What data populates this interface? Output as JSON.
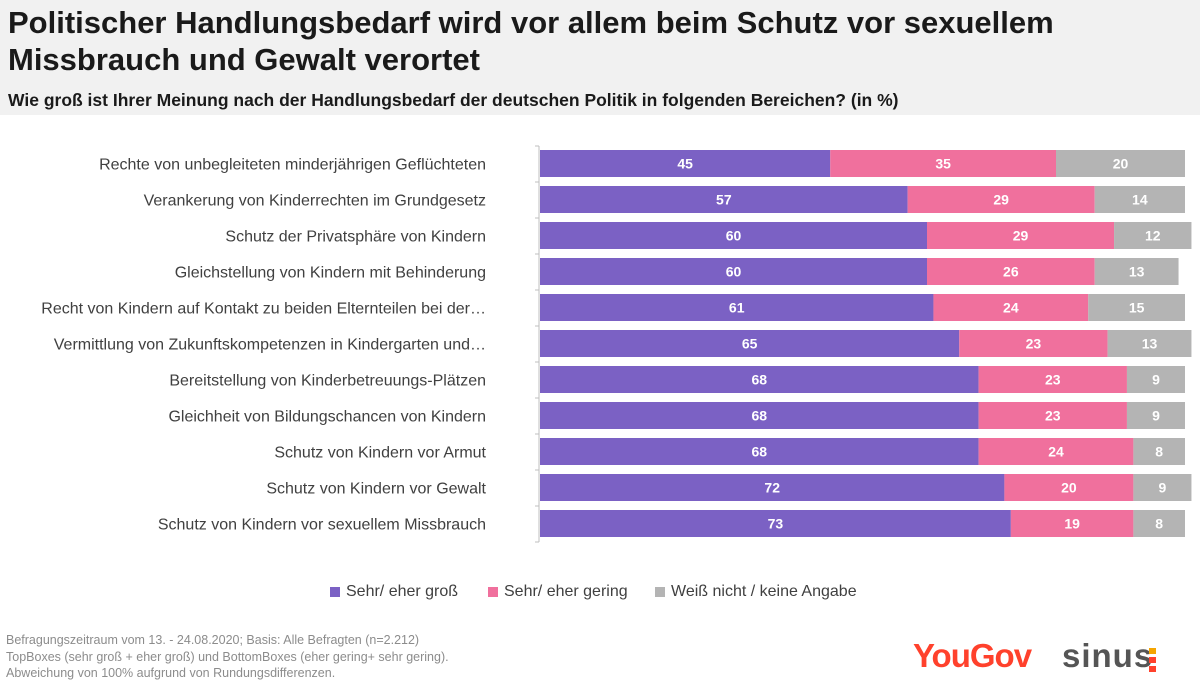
{
  "header": {
    "title": "Politischer Handlungsbedarf wird vor allem beim Schutz vor sexuellem Missbrauch und Gewalt verortet",
    "subtitle": "Wie groß ist Ihrer Meinung nach der Handlungsbedarf der deutschen Politik in folgenden Bereichen? (in %)"
  },
  "chart_data": {
    "type": "bar",
    "orientation": "horizontal",
    "stacked": true,
    "title": "Politischer Handlungsbedarf wird vor allem beim Schutz vor sexuellem Missbrauch und Gewalt verortet",
    "subtitle": "Wie groß ist Ihrer Meinung nach der Handlungsbedarf der deutschen Politik in folgenden Bereichen? (in %)",
    "xlabel": "",
    "ylabel": "",
    "xlim": [
      0,
      100
    ],
    "grid": false,
    "legend_position": "bottom",
    "categories": [
      "Rechte von unbegleiteten minderjährigen Geflüchteten",
      "Verankerung von Kinderrechten im Grundgesetz",
      "Schutz der Privatsphäre von Kindern",
      "Gleichstellung von Kindern mit Behinderung",
      "Recht von Kindern auf Kontakt zu beiden Elternteilen bei der…",
      "Vermittlung von Zukunftskompetenzen in Kindergarten und…",
      "Bereitstellung von Kinderbetreuungs-Plätzen",
      "Gleichheit von Bildungschancen von Kindern",
      "Schutz von Kindern vor Armut",
      "Schutz von Kindern vor Gewalt",
      "Schutz von Kindern vor sexuellem Missbrauch"
    ],
    "series": [
      {
        "name": "Sehr/ eher groß",
        "color": "#7b61c4",
        "values": [
          45,
          57,
          60,
          60,
          61,
          65,
          68,
          68,
          68,
          72,
          73
        ]
      },
      {
        "name": "Sehr/ eher gering",
        "color": "#f0709d",
        "values": [
          35,
          29,
          29,
          26,
          24,
          23,
          23,
          23,
          24,
          20,
          19
        ]
      },
      {
        "name": "Weiß nicht / keine Angabe",
        "color": "#b4b4b4",
        "values": [
          20,
          14,
          12,
          13,
          15,
          13,
          9,
          9,
          8,
          9,
          8
        ]
      }
    ]
  },
  "footer": {
    "lines": [
      "Befragungszeitraum vom 13. - 24.08.2020; Basis: Alle Befragten (n=2.212)",
      "TopBoxes (sehr groß + eher groß) und BottomBoxes (eher gering+ sehr gering).",
      "Abweichung von 100% aufgrund von Rundungsdifferenzen."
    ]
  },
  "logos": {
    "yougov": "YouGov",
    "sinus": "sinus",
    "sinus_mark_colors": [
      "#f5a500",
      "#ff412c",
      "#ff412c"
    ]
  }
}
